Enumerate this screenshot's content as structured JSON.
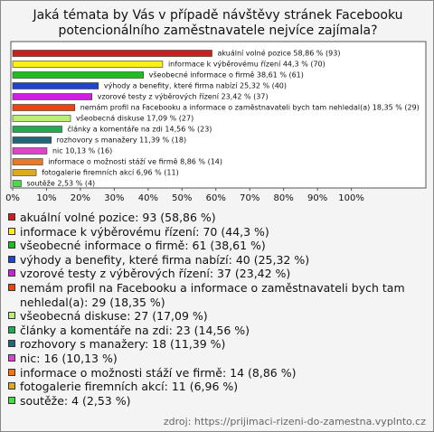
{
  "chart_data": {
    "type": "bar",
    "orientation": "horizontal",
    "title": "Jaká témata by Vás v případě návštěvy stránek Facebooku potencionálního zaměstnavatele nejvíce zajímala?",
    "categories": [
      "akuální volné pozice",
      "informace k výběrovému řízení",
      "všeobecné informace o firmě",
      "výhody a benefity, které firma nabízí",
      "vzorové testy z výběrových řízení",
      "nemám profil na Facebooku a informace o zaměstnavateli bych tam nehledal(a)",
      "všeobecná diskuse",
      "články a komentáře na zdi",
      "rozhovory s manažery",
      "nic",
      "informace o možnosti stáží ve firmě",
      "fotogalerie firemních akcí",
      "soutěže"
    ],
    "values": [
      58.86,
      44.3,
      38.61,
      25.32,
      23.42,
      18.35,
      17.09,
      14.56,
      11.39,
      10.13,
      8.86,
      6.96,
      2.53
    ],
    "value_labels": [
      "akuální volné pozice 58,86 % (93)",
      "informace k výběrovému řízení 44,3 % (70)",
      "všeobecné informace o firmě 38,61 % (61)",
      "výhody a benefity, které firma nabízí 25,32 % (40)",
      "vzorové testy z výběrových řízení 23,42 % (37)",
      "nemám profil na Facebooku a informace o zaměstnavateli bych tam nehledal(a) 18,35 % (29)",
      "všeobecná diskuse 17,09 % (27)",
      "články a komentáře na zdi 14,56 % (23)",
      "rozhovory s manažery 11,39 % (18)",
      "nic 10,13 % (16)",
      "informace o možnosti stáží ve firmě 8,86 % (14)",
      "fotogalerie firemních akcí 6,96 % (11)",
      "soutěže 2,53 % (4)"
    ],
    "legend_labels": [
      "akuální volné pozice: 93 (58,86 %)",
      "informace k výběrovému řízení: 70 (44,3 %)",
      "všeobecné informace o firmě: 61 (38,61 %)",
      "výhody a benefity, které firma nabízí: 40 (25,32 %)",
      "vzorové testy z výběrových řízení: 37 (23,42 %)",
      "nemám profil na Facebooku a informace o zaměstnavateli bych tam nehledal(a): 29 (18,35 %)",
      "všeobecná diskuse: 27 (17,09 %)",
      "články a komentáře na zdi: 23 (14,56 %)",
      "rozhovory s manažery: 18 (11,39 %)",
      "nic: 16 (10,13 %)",
      "informace o možnosti stáží ve firmě: 14 (8,86 %)",
      "fotogalerie firemních akcí: 11 (6,96 %)",
      "soutěže: 4 (2,53 %)"
    ],
    "colors": [
      "#cc2020",
      "#ffee11",
      "#22bb22",
      "#2244cc",
      "#cc22dd",
      "#ee4411",
      "#bbee77",
      "#22aa55",
      "#226677",
      "#dd44cc",
      "#ee7722",
      "#ddaa22",
      "#44dd44"
    ],
    "xlim": [
      0,
      122
    ],
    "xticks": [
      {
        "value": 0,
        "label": "0%"
      },
      {
        "value": 10,
        "label": "10%"
      },
      {
        "value": 20,
        "label": "20%"
      },
      {
        "value": 30,
        "label": "30%"
      },
      {
        "value": 40,
        "label": "40%"
      },
      {
        "value": 50,
        "label": "50%"
      },
      {
        "value": 60,
        "label": "60%"
      },
      {
        "value": 70,
        "label": "70%"
      },
      {
        "value": 80,
        "label": "80%"
      },
      {
        "value": 90,
        "label": "90%"
      },
      {
        "value": 100,
        "label": "100%"
      }
    ],
    "grid": false
  },
  "source": "zdroj: https://prijimaci-rizeni-do-zamestna.vyplnto.cz"
}
